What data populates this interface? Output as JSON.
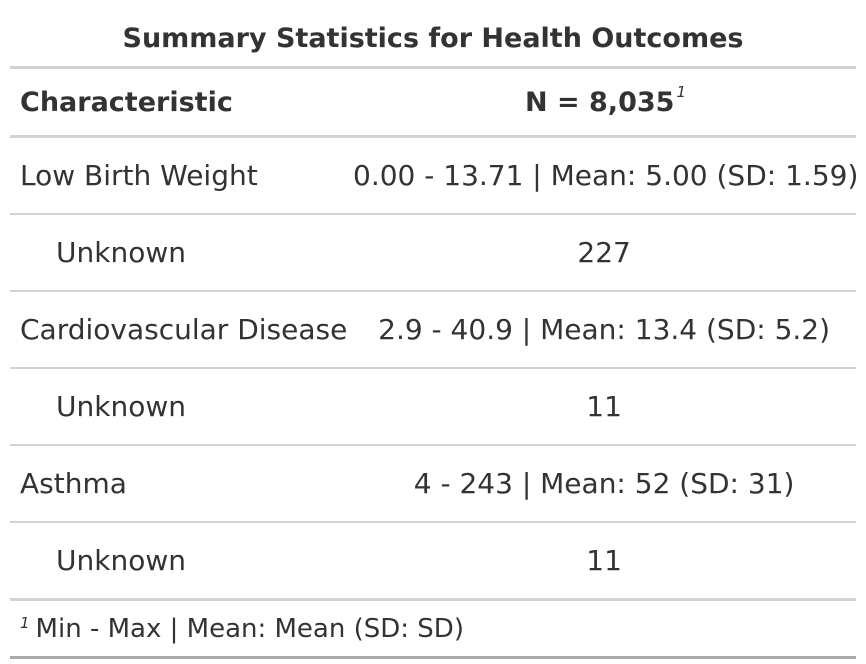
{
  "table": {
    "title": "Summary Statistics for Health Outcomes",
    "header": {
      "characteristic": "Characteristic",
      "n_label": "N = 8,035",
      "n_footnote_mark": "1"
    },
    "rows": [
      {
        "label": "Low Birth Weight",
        "value": "0.00 - 13.71 | Mean: 5.00 (SD: 1.59)"
      },
      {
        "label": "Unknown",
        "value": "227"
      },
      {
        "label": "Cardiovascular Disease",
        "value": "2.9 - 40.9 | Mean: 13.4 (SD: 5.2)"
      },
      {
        "label": "Unknown",
        "value": "11"
      },
      {
        "label": "Asthma",
        "value": "4 - 243 | Mean: 52 (SD: 31)"
      },
      {
        "label": "Unknown",
        "value": "11"
      }
    ],
    "footnote": {
      "mark": "1",
      "text": "Min - Max | Mean: Mean (SD: SD)"
    }
  }
}
